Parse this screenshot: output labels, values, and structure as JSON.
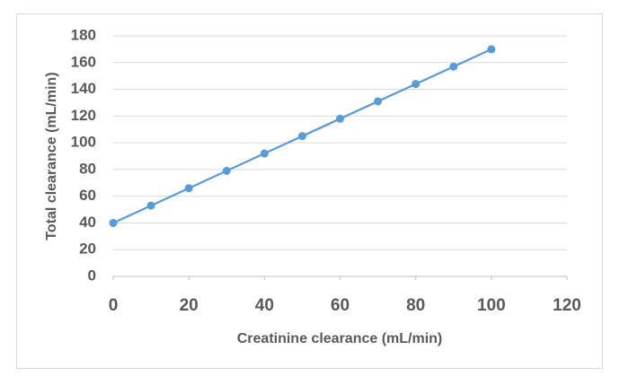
{
  "chart_data": {
    "type": "line",
    "x_label": "Creatinine clearance (mL/min)",
    "y_label": "Total clearance (mL/min)",
    "x": [
      0,
      10,
      20,
      30,
      40,
      50,
      60,
      70,
      80,
      90,
      100
    ],
    "series": [
      {
        "name": "Total clearance",
        "color": "#5b9bd5",
        "values": [
          40,
          53,
          66,
          79,
          92,
          105,
          118,
          131,
          144,
          157,
          170
        ]
      }
    ],
    "xlim": [
      0,
      120
    ],
    "xticks": [
      0,
      20,
      40,
      60,
      80,
      100,
      120
    ],
    "ylim": [
      0,
      180
    ],
    "yticks": [
      0,
      20,
      40,
      60,
      80,
      100,
      120,
      140,
      160,
      180
    ],
    "grid": true,
    "markers": true
  }
}
